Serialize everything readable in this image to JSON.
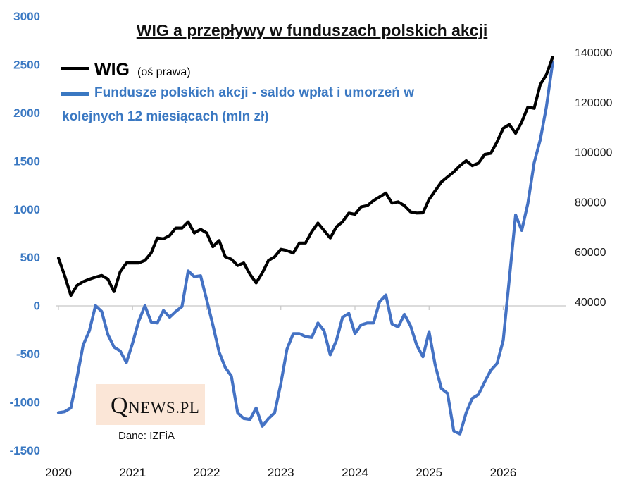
{
  "title": "WIG a przepływy w funduszach polskich akcji",
  "legend": {
    "wig_label": "WIG",
    "wig_note": "(oś prawa)",
    "funds_label_line1": "Fundusze polskich akcji - saldo wpłat i umorzeń w",
    "funds_label_line2": "kolejnych 12 miesiącach (mln zł)"
  },
  "logo": {
    "q": "Q",
    "rest": "NEWS.PL"
  },
  "source": "Dane: IZFiA",
  "colors": {
    "wig": "#000000",
    "funds": "#4472c4",
    "left_axis": "#3a78c2"
  },
  "chart_data": {
    "type": "line",
    "title": "WIG a przepływy w funduszach polskich akcji",
    "x_ticks": [
      "2020",
      "2021",
      "2022",
      "2023",
      "2024",
      "2025",
      "2026"
    ],
    "x_range": [
      2020.0,
      2026.67
    ],
    "left_axis": {
      "ylim": [
        -1500,
        3000
      ],
      "ticks": [
        "3000",
        "2500",
        "2000",
        "1500",
        "1000",
        "500",
        "0",
        "-500",
        "-1000",
        "-1500"
      ]
    },
    "right_axis": {
      "ylim": [
        40000,
        140000
      ],
      "ticks": [
        "140000",
        "120000",
        "100000",
        "80000",
        "60000",
        "40000"
      ]
    },
    "grid": false,
    "series": [
      {
        "name": "Fundusze polskich akcji - saldo wpłat i umorzeń w kolejnych 12 miesiącach (mln zł)",
        "axis": "left",
        "x": [
          2020.0,
          2020.083,
          2020.167,
          2020.25,
          2020.333,
          2020.417,
          2020.5,
          2020.583,
          2020.667,
          2020.75,
          2020.833,
          2020.917,
          2021.0,
          2021.083,
          2021.167,
          2021.25,
          2021.333,
          2021.417,
          2021.5,
          2021.583,
          2021.667,
          2021.75,
          2021.833,
          2021.917,
          2022.0,
          2022.083,
          2022.167,
          2022.25,
          2022.333,
          2022.417,
          2022.5,
          2022.583,
          2022.667,
          2022.75,
          2022.833,
          2022.917,
          2023.0,
          2023.083,
          2023.167,
          2023.25,
          2023.333,
          2023.417,
          2023.5,
          2023.583,
          2023.667,
          2023.75,
          2023.833,
          2023.917,
          2024.0,
          2024.083,
          2024.167,
          2024.25,
          2024.333,
          2024.417,
          2024.5,
          2024.583,
          2024.667,
          2024.75,
          2024.833,
          2024.917,
          2025.0,
          2025.083,
          2025.167,
          2025.25,
          2025.333,
          2025.417,
          2025.5,
          2025.583,
          2025.667,
          2025.75,
          2025.833,
          2025.917,
          2026.0,
          2026.083,
          2026.167,
          2026.25,
          2026.333,
          2026.417,
          2026.5,
          2026.583,
          2026.667
        ],
        "values": [
          -1110,
          -1100,
          -1060,
          -750,
          -410,
          -260,
          0,
          -60,
          -300,
          -430,
          -470,
          -590,
          -390,
          -160,
          0,
          -170,
          -180,
          -50,
          -120,
          -60,
          -10,
          360,
          300,
          310,
          60,
          -200,
          -480,
          -640,
          -730,
          -1110,
          -1170,
          -1180,
          -1060,
          -1250,
          -1170,
          -1110,
          -810,
          -450,
          -290,
          -290,
          -320,
          -330,
          -180,
          -260,
          -510,
          -360,
          -120,
          -80,
          -290,
          -200,
          -180,
          -180,
          40,
          110,
          -190,
          -220,
          -90,
          -210,
          -410,
          -530,
          -270,
          -620,
          -860,
          -910,
          -1300,
          -1330,
          -1110,
          -960,
          -920,
          -790,
          -670,
          -600,
          -360,
          280,
          940,
          780,
          1060,
          1480,
          1720,
          2060,
          2520
        ]
      },
      {
        "name": "WIG",
        "axis": "right",
        "x": [
          2020.0,
          2020.083,
          2020.167,
          2020.25,
          2020.333,
          2020.417,
          2020.5,
          2020.583,
          2020.667,
          2020.75,
          2020.833,
          2020.917,
          2021.0,
          2021.083,
          2021.167,
          2021.25,
          2021.333,
          2021.417,
          2021.5,
          2021.583,
          2021.667,
          2021.75,
          2021.833,
          2021.917,
          2022.0,
          2022.083,
          2022.167,
          2022.25,
          2022.333,
          2022.417,
          2022.5,
          2022.583,
          2022.667,
          2022.75,
          2022.833,
          2022.917,
          2023.0,
          2023.083,
          2023.167,
          2023.25,
          2023.333,
          2023.417,
          2023.5,
          2023.583,
          2023.667,
          2023.75,
          2023.833,
          2023.917,
          2024.0,
          2024.083,
          2024.167,
          2024.25,
          2024.333,
          2024.417,
          2024.5,
          2024.583,
          2024.667,
          2024.75,
          2024.833,
          2024.917,
          2025.0,
          2025.083,
          2025.167,
          2025.25,
          2025.333,
          2025.417,
          2025.5,
          2025.583,
          2025.667,
          2025.75,
          2025.833,
          2025.917,
          2026.0,
          2026.083,
          2026.167,
          2026.25,
          2026.333,
          2026.417,
          2026.5,
          2026.583,
          2026.667
        ],
        "values": [
          57500,
          50500,
          42500,
          46500,
          48000,
          49000,
          49800,
          50500,
          49000,
          44000,
          52000,
          55500,
          55500,
          55500,
          56500,
          59500,
          65500,
          65200,
          66500,
          69500,
          69500,
          72000,
          67500,
          69000,
          67500,
          62000,
          64500,
          58000,
          57000,
          54500,
          55500,
          51000,
          47500,
          51500,
          56500,
          58000,
          61000,
          60500,
          59500,
          63500,
          63500,
          68000,
          71500,
          68500,
          65500,
          70000,
          72000,
          75500,
          75000,
          78000,
          78500,
          80500,
          82000,
          83500,
          79500,
          80000,
          78500,
          76000,
          75500,
          75600,
          81000,
          84500,
          88000,
          90000,
          92000,
          94500,
          96500,
          94500,
          95500,
          99000,
          99500,
          104000,
          109500,
          111000,
          107500,
          112000,
          118000,
          117500,
          127000,
          131000,
          138000
        ]
      }
    ]
  }
}
